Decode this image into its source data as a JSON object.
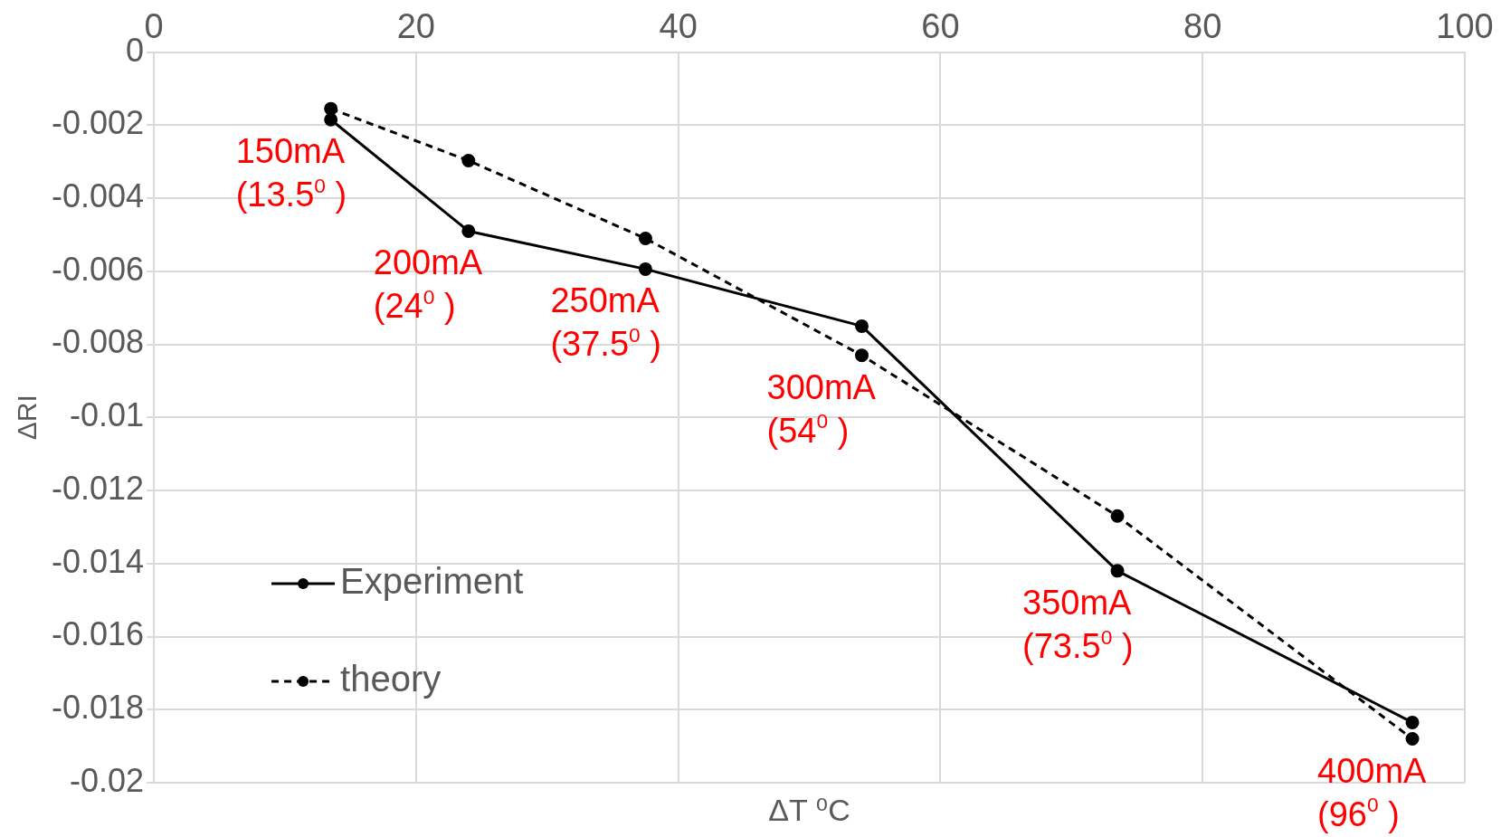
{
  "chart_data": {
    "type": "line",
    "xlabel": "ΔT ⁰C",
    "ylabel": "ΔRI",
    "xlim": [
      0,
      100
    ],
    "xticks": [
      0,
      20,
      40,
      60,
      80,
      100
    ],
    "ylim": [
      -0.02,
      0
    ],
    "yticks": [
      -0.02,
      -0.018,
      -0.016,
      -0.014,
      -0.012,
      -0.01,
      -0.008,
      -0.006,
      -0.004,
      -0.002,
      0
    ],
    "x": [
      13.5,
      24,
      37.5,
      54,
      73.5,
      96
    ],
    "series": [
      {
        "name": "Experiment",
        "color": "#000000",
        "line_style": "solid",
        "values": [
          -0.00185,
          -0.0049,
          -0.00594,
          -0.0075,
          -0.0142,
          -0.01835
        ]
      },
      {
        "name": "theory",
        "color": "#000000",
        "line_style": "dashed",
        "values": [
          -0.00155,
          -0.00297,
          -0.0051,
          -0.0083,
          -0.0127,
          -0.0188
        ]
      }
    ],
    "annotations": [
      {
        "text": "150mA\n(13.5$^{0}$ )",
        "x": 13.5,
        "y": -0.00185
      },
      {
        "text": "200mA\n(24$^{0}$ )",
        "x": 24,
        "y": -0.0049
      },
      {
        "text": "250mA\n(37.5$^{0}$ )",
        "x": 37.5,
        "y": -0.00594
      },
      {
        "text": "300mA\n(54$^{0}$ )",
        "x": 54,
        "y": -0.0083
      },
      {
        "text": "350mA\n(73.5$^{0}$ )",
        "x": 73.5,
        "y": -0.0142
      },
      {
        "text": "400mA\n(96$^{0}$ )",
        "x": 96,
        "y": -0.0188
      }
    ],
    "grid": true,
    "legend": "bottom left",
    "marker": "circle"
  }
}
